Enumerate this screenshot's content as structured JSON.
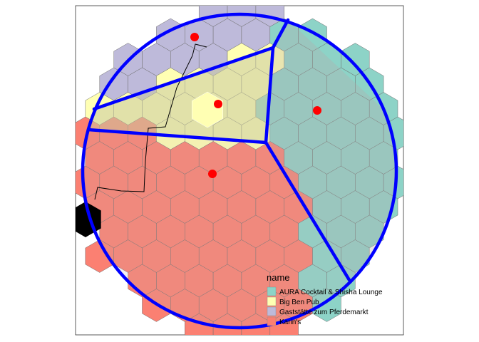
{
  "chart_data": {
    "type": "heatmap",
    "legend": {
      "title": "name",
      "position": "bottom-right-inside",
      "entries": [
        {
          "label": "AURA Cocktail & Shisha Lounge",
          "color": "#8DD3C7"
        },
        {
          "label": "Big Ben Pub",
          "color": "#FFFFB3"
        },
        {
          "label": "Gaststätte zum Pferdemarkt",
          "color": "#BEBADA"
        },
        {
          "label": "Karin's",
          "color": "#FB8072"
        }
      ]
    },
    "points": [
      {
        "x": 273,
        "y": 52
      },
      {
        "x": 306,
        "y": 146
      },
      {
        "x": 445,
        "y": 155
      },
      {
        "x": 298,
        "y": 244
      }
    ],
    "point_color": "#FF0000",
    "boundary_color": "#0000FF",
    "grid": false
  }
}
